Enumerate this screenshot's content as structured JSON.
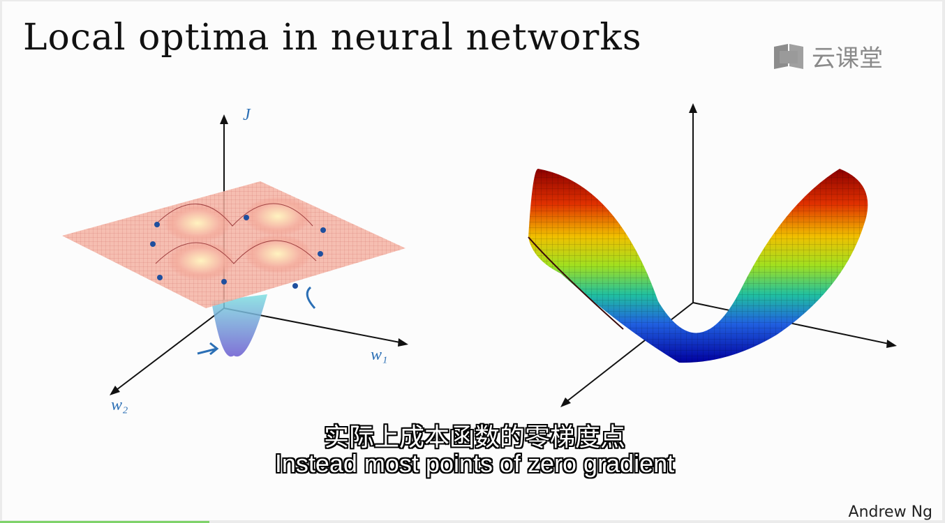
{
  "slide": {
    "title": "Local optima in neural networks",
    "brand": {
      "text": "云课堂",
      "icon": "book-icon"
    },
    "left_figure": {
      "axis_labels": {
        "vertical": "J",
        "horizontal": "w₁",
        "depth": "w₂"
      }
    },
    "subtitles": {
      "chinese": "实际上成本函数的零梯度点",
      "english": "Instead most points of zero gradient"
    },
    "author": "Andrew Ng",
    "colors": {
      "saddle_high": "#b00000",
      "saddle_low": "#0000b0",
      "surface_left": "#f08a7a",
      "annotation": "#2b6fb5"
    }
  }
}
